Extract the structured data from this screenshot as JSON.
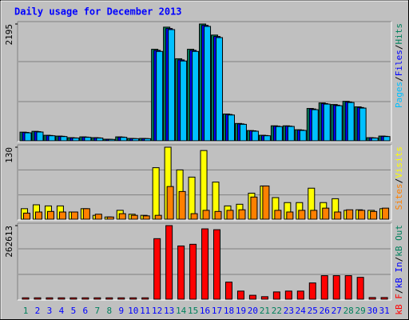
{
  "chart_data": [
    {
      "type": "bar",
      "title": "Daily usage for December 2013",
      "ylim": [
        0,
        2195
      ],
      "yticks": [
        2195
      ],
      "legend_separator": "/",
      "series": [
        {
          "name": "Hits",
          "color": "#00805C",
          "values": [
            163,
            178,
            104,
            89,
            59,
            74,
            59,
            30,
            74,
            45,
            45,
            1720,
            2136,
            1542,
            1720,
            2195,
            1987,
            504,
            326,
            193,
            104,
            282,
            282,
            208,
            608,
            712,
            682,
            742,
            638,
            59,
            89
          ]
        },
        {
          "name": "Files",
          "color": "#0000FF",
          "values": [
            158,
            172,
            100,
            85,
            55,
            70,
            56,
            28,
            70,
            42,
            42,
            1700,
            2110,
            1520,
            1700,
            2170,
            1960,
            495,
            318,
            188,
            100,
            275,
            276,
            202,
            598,
            700,
            670,
            730,
            626,
            56,
            85
          ]
        },
        {
          "name": "Pages",
          "color": "#00C0FF",
          "values": [
            150,
            165,
            95,
            80,
            52,
            66,
            52,
            26,
            66,
            40,
            40,
            1680,
            2090,
            1500,
            1680,
            2150,
            1940,
            485,
            310,
            180,
            95,
            268,
            270,
            195,
            585,
            690,
            660,
            720,
            615,
            52,
            80
          ]
        }
      ]
    },
    {
      "type": "bar",
      "ylim": [
        0,
        130
      ],
      "yticks": [
        130
      ],
      "legend_separator": "/",
      "series": [
        {
          "name": "Visits",
          "color": "#FFFF00",
          "values": [
            19,
            26,
            24,
            24,
            13,
            19,
            7,
            4,
            16,
            9,
            7,
            93,
            130,
            89,
            76,
            124,
            67,
            24,
            27,
            47,
            60,
            39,
            30,
            30,
            56,
            30,
            37,
            16,
            17,
            16,
            19
          ]
        },
        {
          "name": "Sites",
          "color": "#FF8000",
          "values": [
            11,
            13,
            14,
            13,
            13,
            19,
            9,
            4,
            10,
            7,
            6,
            7,
            59,
            50,
            10,
            16,
            14,
            16,
            17,
            40,
            60,
            16,
            13,
            16,
            16,
            20,
            13,
            17,
            16,
            14,
            20
          ]
        }
      ]
    },
    {
      "type": "bar",
      "ylim": [
        0,
        262613
      ],
      "yticks": [
        262613
      ],
      "legend_separator": "/",
      "series": [
        {
          "name": "kB F",
          "color": "#FF0000",
          "values": [
            5000,
            5000,
            5000,
            5000,
            5000,
            5000,
            5000,
            5000,
            5000,
            5000,
            5000,
            216000,
            262613,
            190000,
            196000,
            251000,
            248000,
            61000,
            29000,
            14000,
            9000,
            26000,
            29000,
            29000,
            58000,
            84000,
            84000,
            84000,
            78000,
            6000,
            6000
          ]
        }
      ],
      "legend_only": [
        {
          "name": "kB In",
          "color": "#0000FF"
        },
        {
          "name": "kB Out",
          "color": "#00805C"
        }
      ],
      "categories": [
        "1",
        "2",
        "3",
        "4",
        "5",
        "6",
        "7",
        "8",
        "9",
        "10",
        "11",
        "12",
        "13",
        "14",
        "15",
        "16",
        "17",
        "18",
        "19",
        "20",
        "21",
        "22",
        "23",
        "24",
        "25",
        "26",
        "27",
        "28",
        "29",
        "30",
        "31"
      ],
      "category_colors": [
        "#00805C",
        "#0000FF",
        "#0000FF",
        "#0000FF",
        "#0000FF",
        "#0000FF",
        "#00805C",
        "#00805C",
        "#0000FF",
        "#0000FF",
        "#0000FF",
        "#0000FF",
        "#0000FF",
        "#00805C",
        "#00805C",
        "#0000FF",
        "#0000FF",
        "#0000FF",
        "#0000FF",
        "#0000FF",
        "#00805C",
        "#00805C",
        "#0000FF",
        "#0000FF",
        "#0000FF",
        "#0000FF",
        "#0000FF",
        "#00805C",
        "#00805C",
        "#0000FF",
        "#0000FF"
      ]
    }
  ]
}
